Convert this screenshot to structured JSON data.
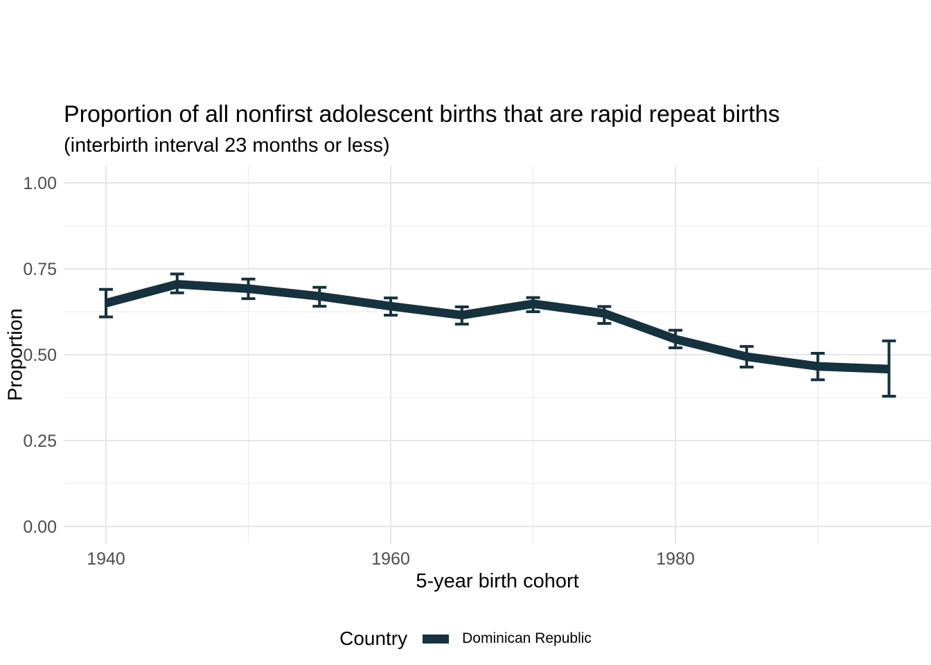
{
  "chart_data": {
    "type": "line",
    "title": "Proportion of all nonfirst adolescent births that are rapid repeat births",
    "subtitle": "(interbirth interval 23 months or less)",
    "xlabel": "5-year birth cohort",
    "ylabel": "Proportion",
    "x": [
      1940,
      1945,
      1950,
      1955,
      1960,
      1965,
      1970,
      1975,
      1980,
      1985,
      1990,
      1995
    ],
    "series": [
      {
        "name": "Dominican Republic",
        "color": "#16323E",
        "values": [
          0.65,
          0.705,
          0.692,
          0.67,
          0.641,
          0.615,
          0.648,
          0.62,
          0.545,
          0.494,
          0.466,
          0.458
        ],
        "ci_low": [
          0.61,
          0.68,
          0.663,
          0.641,
          0.615,
          0.589,
          0.625,
          0.591,
          0.52,
          0.464,
          0.427,
          0.379
        ],
        "ci_high": [
          0.69,
          0.735,
          0.72,
          0.696,
          0.665,
          0.639,
          0.666,
          0.64,
          0.571,
          0.524,
          0.504,
          0.54
        ]
      }
    ],
    "error_bars": true,
    "x_ticks": [
      1940,
      1960,
      1980
    ],
    "x_tick_labels": [
      "1940",
      "1960",
      "1980"
    ],
    "x_minor_breaks": [
      1950,
      1970,
      1990
    ],
    "y_ticks": [
      0,
      0.25,
      0.5,
      0.75,
      1
    ],
    "y_tick_labels": [
      "0.00",
      "0.25",
      "0.50",
      "0.75",
      "1.00"
    ],
    "y_minor_breaks": [
      0.125,
      0.375,
      0.625,
      0.875
    ],
    "xlim": [
      1937.25,
      1997.75
    ],
    "ylim": [
      -0.05,
      1.05
    ],
    "grid": "major+minor",
    "legend_position": "bottom"
  },
  "legend": {
    "title": "Country",
    "items": [
      {
        "label": "Dominican Republic",
        "color": "#16323E"
      }
    ]
  },
  "colors": {
    "series": "#16323E",
    "grid_major": "#e6e6e6",
    "grid_minor": "#ededed",
    "axis_text": "#4d4d4d",
    "text": "#000000",
    "background": "#ffffff"
  }
}
